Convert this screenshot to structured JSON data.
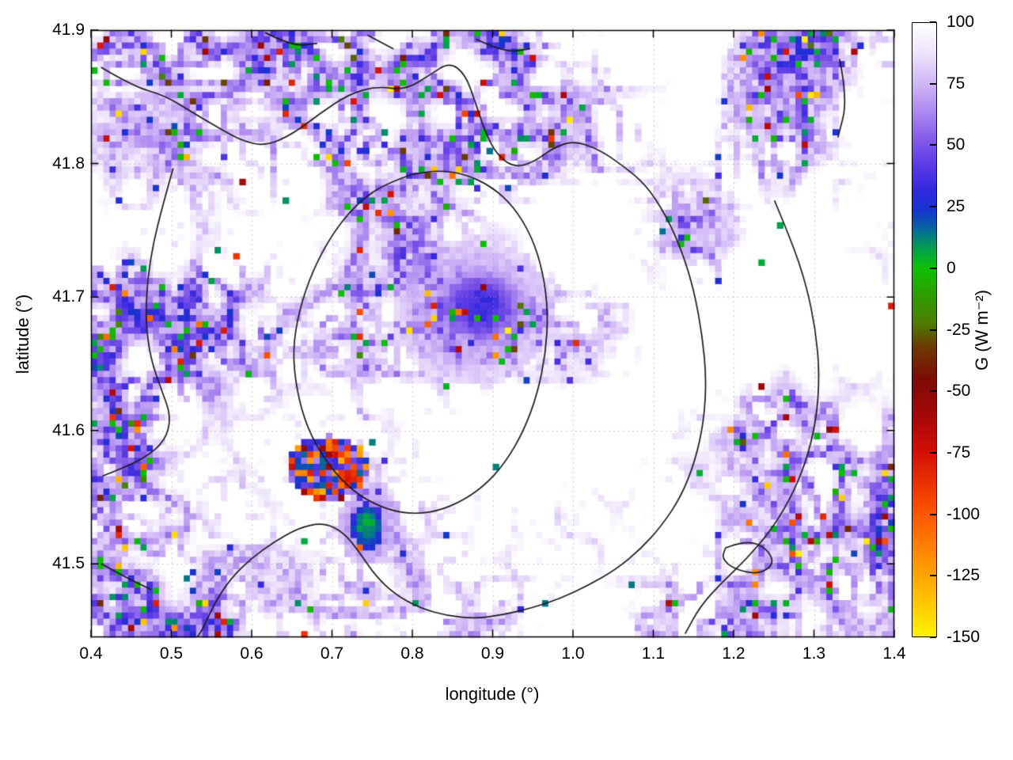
{
  "chart_data": {
    "type": "heatmap",
    "title": "",
    "xlabel": "longitude (°)",
    "ylabel": "latitude (°)",
    "colorbar_label": "G (W m⁻²)",
    "x_range": [
      0.4,
      1.4
    ],
    "y_range": [
      41.445,
      41.9
    ],
    "x_ticks": [
      "0.4",
      "0.5",
      "0.6",
      "0.7",
      "0.8",
      "0.9",
      "1.0",
      "1.1",
      "1.2",
      "1.3",
      "1.4"
    ],
    "y_ticks": [
      "41.5",
      "41.6",
      "41.7",
      "41.8",
      "41.9"
    ],
    "colorbar_range": [
      -150,
      100
    ],
    "colorbar_ticks": [
      "100",
      "75",
      "50",
      "25",
      "0",
      "-25",
      "-50",
      "-75",
      "-100",
      "-125",
      "-150"
    ],
    "grid": true,
    "legend": "colorbar-right",
    "colors": {
      "background": "#ffffff",
      "axis": "#000000",
      "gridline": "#9a9a9a",
      "contour": "#1c1c1c"
    },
    "palette": [
      {
        "v": 100,
        "c": "#ffffff"
      },
      {
        "v": 88,
        "c": "#eee4fb"
      },
      {
        "v": 76,
        "c": "#d2b9f7"
      },
      {
        "v": 64,
        "c": "#ad89f0"
      },
      {
        "v": 52,
        "c": "#8159ea"
      },
      {
        "v": 42,
        "c": "#5b3ae4"
      },
      {
        "v": 32,
        "c": "#3328de"
      },
      {
        "v": 24,
        "c": "#1733cf"
      },
      {
        "v": 18,
        "c": "#0a58ab"
      },
      {
        "v": 13,
        "c": "#027f7f"
      },
      {
        "v": 7,
        "c": "#00a545"
      },
      {
        "v": 0,
        "c": "#0cc000"
      },
      {
        "v": -10,
        "c": "#2aa000"
      },
      {
        "v": -22,
        "c": "#4d7d00"
      },
      {
        "v": -32,
        "c": "#6b3a00"
      },
      {
        "v": -45,
        "c": "#7d0a06"
      },
      {
        "v": -60,
        "c": "#a50808"
      },
      {
        "v": -75,
        "c": "#d40f06"
      },
      {
        "v": -90,
        "c": "#f03800"
      },
      {
        "v": -105,
        "c": "#ff6600"
      },
      {
        "v": -120,
        "c": "#ff9400"
      },
      {
        "v": -135,
        "c": "#ffc400"
      },
      {
        "v": -150,
        "c": "#fff200"
      }
    ],
    "heatmap": {
      "cols": 130,
      "rows": 98,
      "seed": 20240613,
      "background_value": 100,
      "filament": {
        "scale1": 6.5,
        "scale2": 3.2,
        "big_scale": 16,
        "threshold": 0.5,
        "depth_min": 25,
        "depth_max": 80
      },
      "speckle": {
        "ridge_threshold": 0.72,
        "probability": 0.12
      },
      "white_basin": {
        "cx": 1.07,
        "cy": 41.7,
        "sx": 0.13,
        "sy": 0.09,
        "strength": 0.3
      },
      "features": [
        {
          "name": "blue-halo",
          "cx": 0.875,
          "cy": 41.69,
          "rx": 0.1,
          "ry": 0.055,
          "value": 62,
          "spread": 18
        },
        {
          "name": "blue-patch",
          "cx": 0.885,
          "cy": 41.693,
          "rx": 0.058,
          "ry": 0.03,
          "value": 28,
          "spread": 45
        },
        {
          "name": "green-halo",
          "cx": 0.744,
          "cy": 41.528,
          "rx": 0.036,
          "ry": 0.029,
          "value": 55,
          "spread": 20
        },
        {
          "name": "green-patch",
          "cx": 0.744,
          "cy": 41.528,
          "rx": 0.02,
          "ry": 0.017,
          "value": 2,
          "spread": 25
        },
        {
          "name": "red-cluster",
          "cx": 0.695,
          "cy": 41.572,
          "rx": 0.05,
          "ry": 0.024,
          "value": -90,
          "speckle": 0.45
        }
      ]
    },
    "contours": [
      [
        [
          0.413,
          41.872
        ],
        [
          0.452,
          41.858
        ],
        [
          0.492,
          41.851
        ],
        [
          0.527,
          41.838
        ],
        [
          0.558,
          41.827
        ],
        [
          0.588,
          41.817
        ],
        [
          0.617,
          41.813
        ],
        [
          0.651,
          41.822
        ],
        [
          0.686,
          41.838
        ],
        [
          0.721,
          41.852
        ],
        [
          0.756,
          41.858
        ],
        [
          0.791,
          41.855
        ],
        [
          0.821,
          41.866
        ],
        [
          0.846,
          41.876
        ],
        [
          0.866,
          41.867
        ],
        [
          0.879,
          41.845
        ],
        [
          0.891,
          41.823
        ],
        [
          0.906,
          41.806
        ],
        [
          0.927,
          41.797
        ],
        [
          0.951,
          41.801
        ],
        [
          0.976,
          41.812
        ],
        [
          1.001,
          41.817
        ],
        [
          1.031,
          41.811
        ],
        [
          1.061,
          41.799
        ],
        [
          1.091,
          41.784
        ],
        [
          1.116,
          41.761
        ],
        [
          1.136,
          41.734
        ],
        [
          1.151,
          41.704
        ],
        [
          1.161,
          41.671
        ],
        [
          1.166,
          41.639
        ],
        [
          1.163,
          41.607
        ],
        [
          1.152,
          41.577
        ],
        [
          1.135,
          41.551
        ],
        [
          1.111,
          41.529
        ],
        [
          1.084,
          41.511
        ],
        [
          1.054,
          41.496
        ],
        [
          1.019,
          41.484
        ],
        [
          0.984,
          41.474
        ],
        [
          0.949,
          41.467
        ],
        [
          0.914,
          41.462
        ],
        [
          0.879,
          41.459
        ],
        [
          0.844,
          41.461
        ],
        [
          0.809,
          41.467
        ],
        [
          0.779,
          41.477
        ],
        [
          0.754,
          41.491
        ],
        [
          0.734,
          41.509
        ],
        [
          0.714,
          41.524
        ],
        [
          0.689,
          41.531
        ],
        [
          0.659,
          41.527
        ],
        [
          0.629,
          41.517
        ],
        [
          0.599,
          41.504
        ],
        [
          0.574,
          41.489
        ],
        [
          0.554,
          41.471
        ],
        [
          0.539,
          41.451
        ],
        [
          0.531,
          41.444
        ]
      ],
      [
        [
          0.801,
          41.792
        ],
        [
          0.766,
          41.785
        ],
        [
          0.731,
          41.77
        ],
        [
          0.701,
          41.748
        ],
        [
          0.676,
          41.72
        ],
        [
          0.659,
          41.69
        ],
        [
          0.651,
          41.66
        ],
        [
          0.656,
          41.63
        ],
        [
          0.669,
          41.602
        ],
        [
          0.691,
          41.578
        ],
        [
          0.719,
          41.558
        ],
        [
          0.751,
          41.545
        ],
        [
          0.786,
          41.538
        ],
        [
          0.821,
          41.538
        ],
        [
          0.856,
          41.545
        ],
        [
          0.889,
          41.558
        ],
        [
          0.916,
          41.576
        ],
        [
          0.939,
          41.6
        ],
        [
          0.956,
          41.628
        ],
        [
          0.966,
          41.658
        ],
        [
          0.969,
          41.688
        ],
        [
          0.963,
          41.718
        ],
        [
          0.949,
          41.745
        ],
        [
          0.926,
          41.768
        ],
        [
          0.898,
          41.783
        ],
        [
          0.866,
          41.792
        ],
        [
          0.833,
          41.795
        ],
        [
          0.801,
          41.792
        ]
      ],
      [
        [
          0.502,
          41.796
        ],
        [
          0.49,
          41.77
        ],
        [
          0.478,
          41.742
        ],
        [
          0.47,
          41.712
        ],
        [
          0.468,
          41.682
        ],
        [
          0.474,
          41.654
        ],
        [
          0.488,
          41.63
        ],
        [
          0.5,
          41.61
        ],
        [
          0.492,
          41.592
        ],
        [
          0.468,
          41.58
        ],
        [
          0.44,
          41.572
        ],
        [
          0.415,
          41.566
        ]
      ],
      [
        [
          1.251,
          41.772
        ],
        [
          1.272,
          41.742
        ],
        [
          1.29,
          41.71
        ],
        [
          1.302,
          41.676
        ],
        [
          1.307,
          41.642
        ],
        [
          1.303,
          41.608
        ],
        [
          1.29,
          41.576
        ],
        [
          1.27,
          41.548
        ],
        [
          1.245,
          41.524
        ],
        [
          1.215,
          41.503
        ],
        [
          1.185,
          41.486
        ],
        [
          1.158,
          41.468
        ],
        [
          1.14,
          41.448
        ]
      ],
      [
        [
          1.19,
          41.512
        ],
        [
          1.215,
          41.518
        ],
        [
          1.241,
          41.512
        ],
        [
          1.251,
          41.5
        ],
        [
          1.231,
          41.492
        ],
        [
          1.201,
          41.496
        ],
        [
          1.185,
          41.504
        ],
        [
          1.19,
          41.512
        ]
      ],
      [
        [
          0.617,
          41.898
        ],
        [
          0.65,
          41.888
        ],
        [
          0.681,
          41.89
        ]
      ],
      [
        [
          0.745,
          41.896
        ],
        [
          0.776,
          41.886
        ]
      ],
      [
        [
          0.88,
          41.893
        ],
        [
          0.915,
          41.883
        ],
        [
          0.946,
          41.886
        ]
      ],
      [
        [
          1.332,
          41.878
        ],
        [
          1.342,
          41.848
        ],
        [
          1.33,
          41.82
        ]
      ],
      [
        [
          0.413,
          41.5
        ],
        [
          0.446,
          41.489
        ],
        [
          0.474,
          41.481
        ]
      ]
    ]
  }
}
